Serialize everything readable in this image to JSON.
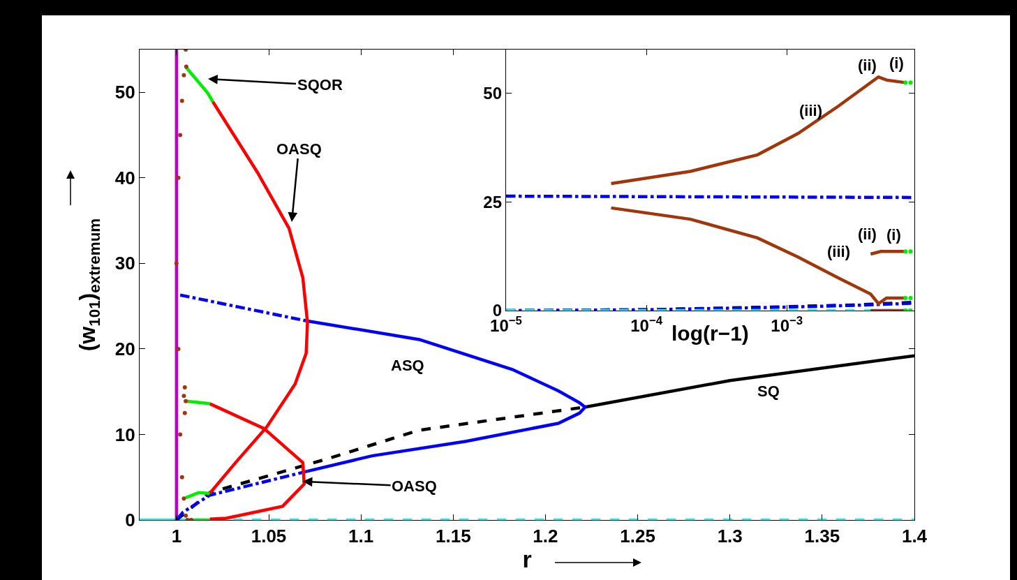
{
  "chart_data": [
    {
      "type": "line",
      "xlabel": "r",
      "ylabel": "(w$_{101}$)$_{extremum}$",
      "xlim": [
        0.98,
        1.4
      ],
      "ylim": [
        0,
        55
      ],
      "xticks": [
        1,
        1.05,
        1.1,
        1.15,
        1.2,
        1.25,
        1.3,
        1.35,
        1.4
      ],
      "yticks": [
        0,
        10,
        20,
        30,
        40,
        50
      ],
      "grid": false,
      "annotations": [
        "SQOR",
        "OASQ",
        "ASQ",
        "SQ",
        {
          "text": "OASQ",
          "x": 1.0684,
          "y": 4.5
        }
      ],
      "series": [
        {
          "color": "#00ffff",
          "x": [
            0.98,
            1
          ],
          "values": [
            0,
            0
          ],
          "line_style": "solid"
        },
        {
          "color": "#00ffff",
          "x": [
            1,
            1.4
          ],
          "values": [
            0,
            0
          ],
          "line_style": "dashed"
        },
        {
          "color": "#c000c0",
          "x": [
            1,
            1
          ],
          "values": [
            0,
            55
          ],
          "line_style": "solid"
        },
        {
          "color": "#000000",
          "x": [
            1,
            1.018,
            1.081,
            1.1316,
            1.2215
          ],
          "values": [
            0,
            3.2,
            7.1,
            10.5,
            13.2
          ],
          "line_style": "dashed"
        },
        {
          "color": "#000000",
          "x": [
            1.2215,
            1.3,
            1.4
          ],
          "values": [
            13.2,
            16.3,
            19.2
          ],
          "line_style": "solid"
        },
        {
          "color": "#0000ff",
          "x": [
            1.002,
            1.07
          ],
          "values": [
            26.3,
            23.3
          ],
          "line_style": "dashdot"
        },
        {
          "color": "#0000ff",
          "x": [
            1.07,
            1.1316,
            1.182,
            1.207,
            1.2185,
            1.2215,
            1.2185,
            1.207,
            1.157,
            1.106,
            1.071
          ],
          "values": [
            23.3,
            21.1,
            17.6,
            15.1,
            13.7,
            13.2,
            12.5,
            11.3,
            9.2,
            7.5,
            5.7
          ],
          "line_style": "solid"
        },
        {
          "color": "#0000ff",
          "x": [
            1.071,
            1.018,
            1.0035,
            1
          ],
          "values": [
            5.7,
            2.9,
            0.9,
            0
          ],
          "line_style": "dashdot"
        },
        {
          "color": "#ff0000",
          "x": [
            1.0197,
            1.044,
            1.061,
            1.0685,
            1.071,
            1.0703,
            1.0643,
            1.049,
            1.032,
            1.018
          ],
          "values": [
            48.9,
            40.6,
            34.1,
            28.3,
            23.1,
            19.5,
            15.9,
            10.9,
            6.7,
            3.1
          ],
          "line_style": "solid"
        },
        {
          "color": "#ff0000",
          "x": [
            1.018,
            1.0474,
            1.0685,
            1.0692,
            1.0575,
            1.027,
            1.018
          ],
          "values": [
            13.6,
            10.7,
            6.7,
            4.2,
            1.6,
            0.2,
            0.1
          ],
          "line_style": "solid"
        },
        {
          "color": "#00ee00",
          "x": [
            1.0053,
            1.017,
            1.0197
          ],
          "values": [
            52.9,
            49.9,
            48.9
          ],
          "line_style": "solid"
        },
        {
          "color": "#00ee00",
          "x": [
            1.005,
            1.018
          ],
          "values": [
            13.9,
            13.6
          ],
          "line_style": "solid"
        },
        {
          "color": "#00ee00",
          "x": [
            1.005,
            1.012,
            1.018
          ],
          "values": [
            2.6,
            3.2,
            3.1
          ],
          "line_style": "solid"
        },
        {
          "color": "#00ee00",
          "x": [
            1.005,
            1.018
          ],
          "values": [
            0,
            0
          ],
          "line_style": "solid"
        },
        {
          "type": "scatter",
          "marker": "circle",
          "color": "#a0360a",
          "x": [
            1,
            1.001,
            1.002,
            1.003,
            1.004,
            1.005,
            1.0053,
            1.004,
            1.0045,
            1.005,
            1.0045,
            1.001,
            1.002,
            1.003,
            1.004,
            1.005,
            1.006,
            1.008
          ],
          "values": [
            30,
            40,
            45,
            49,
            52,
            55,
            53,
            14.5,
            12.5,
            13.9,
            15.5,
            20,
            10,
            5,
            2.5,
            0.5,
            0,
            0
          ]
        }
      ]
    },
    {
      "type": "line",
      "xlabel": "log(r−1)",
      "log": "x",
      "xlim": [
        1e-05,
        0.0081
      ],
      "ylim": [
        0,
        60
      ],
      "xticks": [
        {
          "value": 1e-05,
          "label": "10$^{−5}$"
        },
        {
          "value": 0.0001,
          "label": "10$^{−4}$"
        },
        {
          "value": 0.001,
          "label": "10$^{−3}$"
        }
      ],
      "yticks": [
        0,
        25,
        50
      ],
      "grid": false,
      "annotations": [
        "(ii)",
        "(i)",
        "(iii)",
        "(ii)",
        "(i)",
        "(iii)"
      ],
      "series": [
        {
          "color": "#0000ff",
          "x": [
            1e-05,
            0.0081
          ],
          "values": [
            26.3,
            26.0
          ],
          "line_style": "dashdot"
        },
        {
          "color": "#000000",
          "x": [
            1e-05,
            0.0001,
            0.001,
            0.003,
            0.0081
          ],
          "values": [
            0,
            0.2,
            0.9,
            1.3,
            1.9
          ],
          "line_style": "dashed"
        },
        {
          "color": "#0000ff",
          "x": [
            1e-05,
            0.0001,
            0.001,
            0.003,
            0.0081
          ],
          "values": [
            0,
            0.2,
            0.8,
            1.2,
            1.7
          ],
          "line_style": "dashdot"
        },
        {
          "color": "#00ffff",
          "x": [
            1e-05,
            0.0081
          ],
          "values": [
            0,
            0
          ],
          "line_style": "dashed"
        },
        {
          "color": "#a0360a",
          "x": [
            5.6e-05,
            0.000206,
            0.000618,
            0.0012,
            0.00233,
            0.00449,
            0.00513,
            0.007
          ],
          "values": [
            29.2,
            32.0,
            35.8,
            40.7,
            47,
            53.7,
            53.0,
            52.4
          ],
          "line_style": "solid"
        },
        {
          "color": "#a0360a",
          "x": [
            5.6e-05,
            0.000206,
            0.000618,
            0.0012,
            0.00233,
            0.00395,
            0.00449,
            0.00513,
            0.007
          ],
          "values": [
            23.6,
            21.0,
            16.7,
            12.3,
            7.5,
            3.8,
            1.6,
            2.9,
            2.9
          ],
          "line_style": "solid"
        },
        {
          "color": "#a0360a",
          "x": [
            0.00395,
            0.00466,
            0.007
          ],
          "values": [
            13.0,
            13.6,
            13.6
          ],
          "line_style": "solid"
        },
        {
          "color": "#a0360a",
          "x": [
            0.00395,
            0.007
          ],
          "values": [
            0,
            0
          ],
          "line_style": "solid"
        },
        {
          "type": "scatter",
          "marker": "circle",
          "color": "#00ee00",
          "x": [
            0.007,
            0.0076,
            0.007,
            0.0076,
            0.007,
            0.0076,
            0.007,
            0.0076
          ],
          "values": [
            52.4,
            52.4,
            13.6,
            13.6,
            2.9,
            2.9,
            0,
            0
          ]
        }
      ]
    }
  ]
}
